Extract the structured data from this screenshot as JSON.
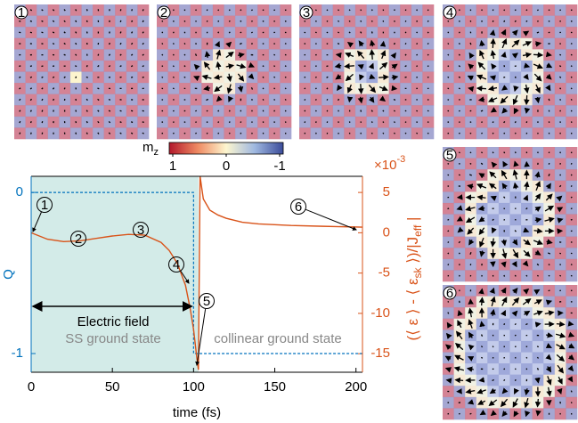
{
  "panels": [
    "1",
    "2",
    "3",
    "4",
    "5",
    "6"
  ],
  "colorbar": {
    "label": "m",
    "label_sub": "z",
    "lim": [
      1,
      -1
    ],
    "ticks": [
      1,
      0,
      -1
    ]
  },
  "chart_data": {
    "type": "line",
    "xlabel": "time (fs)",
    "ylabel": "Q",
    "y2label_parts": [
      "(⟨ ε ⟩ - ⟨ ε",
      "sk",
      " ⟩)/|J",
      "eff",
      " |"
    ],
    "y2_multiplier": "×10",
    "y2_exponent": "-3",
    "xlim": [
      0,
      204
    ],
    "xticks": [
      0,
      50,
      100,
      150,
      200
    ],
    "ylim": [
      -1.116,
      0.1
    ],
    "yticks": [
      0,
      -1
    ],
    "y2lim": [
      -17.3,
      7
    ],
    "y2ticks": [
      5,
      0,
      -5,
      -10,
      -15
    ],
    "shade_x": [
      0,
      103
    ],
    "shade_color": "#d3ebe8",
    "field_label": "Electric field",
    "ss_label": "SS ground state",
    "collinear_label": "collinear ground state",
    "annotations": [
      "1",
      "2",
      "3",
      "4",
      "5",
      "6"
    ],
    "series": [
      {
        "color": "#0072bd",
        "dash": true,
        "axis": "y",
        "x": [
          0,
          100,
          100,
          204
        ],
        "values": [
          0,
          0,
          -1,
          -1
        ]
      },
      {
        "color": "#d95319",
        "dash": false,
        "axis": "y2",
        "x": [
          0,
          10,
          20,
          30,
          40,
          50,
          60,
          70,
          80,
          85,
          90,
          95,
          98,
          100,
          102,
          103,
          103.5,
          104,
          106,
          110,
          115,
          120,
          130,
          140,
          160,
          180,
          204
        ],
        "values": [
          0,
          -0.8,
          -1.1,
          -1,
          -0.7,
          -0.4,
          -0.2,
          -0.3,
          -1.2,
          -2.2,
          -3.8,
          -6.5,
          -9.5,
          -12,
          -15.5,
          -17,
          -5,
          7,
          4.2,
          2.8,
          2.2,
          1.8,
          1.3,
          1.1,
          0.9,
          0.8,
          0.7
        ]
      }
    ]
  }
}
